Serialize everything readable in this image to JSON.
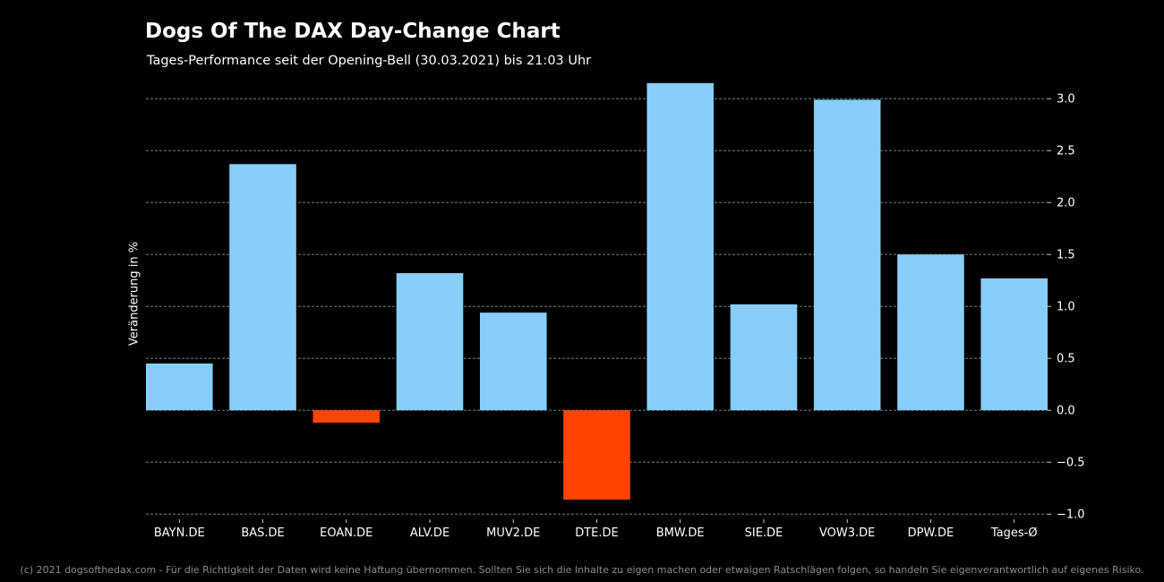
{
  "chart_data": {
    "type": "bar",
    "title": "Dogs Of The DAX Day-Change Chart",
    "subtitle": "Tages-Performance seit der Opening-Bell (30.03.2021) bis 21:03 Uhr",
    "xlabel": "",
    "ylabel": "Veränderung in %",
    "categories": [
      "BAYN.DE",
      "BAS.DE",
      "EOAN.DE",
      "ALV.DE",
      "MUV2.DE",
      "DTE.DE",
      "BMW.DE",
      "SIE.DE",
      "VOW3.DE",
      "DPW.DE",
      "Tages-Ø"
    ],
    "values": [
      0.45,
      2.37,
      -0.12,
      1.32,
      0.94,
      -0.86,
      3.15,
      1.02,
      2.99,
      1.5,
      1.27
    ],
    "ylim": [
      -1.05,
      3.2
    ],
    "yticks": [
      -1.0,
      -0.5,
      0.0,
      0.5,
      1.0,
      1.5,
      2.0,
      2.5,
      3.0
    ],
    "ytick_labels": [
      "−1.0",
      "−0.5",
      "0.0",
      "0.5",
      "1.0",
      "1.5",
      "2.0",
      "2.5",
      "3.0"
    ],
    "y_axis_side": "right",
    "grid": true,
    "colors": {
      "positive": "#87cefa",
      "negative": "#ff4500",
      "background": "#000000",
      "grid": "#8c8c8c",
      "text": "#ffffff"
    }
  },
  "footer": "(c) 2021 dogsofthedax.com - Für die Richtigkeit der Daten wird keine Haftung übernommen. Sollten Sie sich die Inhalte zu eigen machen oder etwaigen Ratschlägen folgen, so handeln Sie eigenverantwortlich auf eigenes Risiko."
}
